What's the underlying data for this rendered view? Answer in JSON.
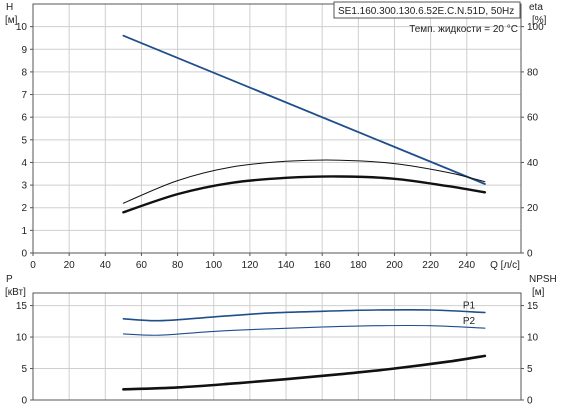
{
  "header": {
    "model": "SE1.160.300.130.6.52E.C.N.51D, 50Hz",
    "temp_note": "Темп. жидкости = 20 °C"
  },
  "chart_data": [
    {
      "type": "line",
      "id": "head-eff",
      "xlabel": "Q [л/с]",
      "xlim": [
        0,
        270
      ],
      "x_ticks": [
        0,
        20,
        40,
        60,
        80,
        100,
        120,
        140,
        160,
        180,
        200,
        220,
        240
      ],
      "ylabel_left_top": "H",
      "ylabel_left_unit": "[м]",
      "ylim_left": [
        0,
        11
      ],
      "y_ticks_left": [
        0,
        1,
        2,
        3,
        4,
        5,
        6,
        7,
        8,
        9,
        10
      ],
      "ylabel_right_top": "eta",
      "ylabel_right_unit": "[%]",
      "ylim_right": [
        0,
        110
      ],
      "y_ticks_right": [
        0,
        20,
        40,
        60,
        80,
        100
      ],
      "grid": true,
      "series": [
        {
          "axis": "left",
          "color": "#1f4e8c",
          "x": [
            50,
            250
          ],
          "values": [
            9.6,
            3.05
          ]
        },
        {
          "axis": "right",
          "color": "#111111",
          "x": [
            50,
            80,
            110,
            140,
            170,
            200,
            230,
            250
          ],
          "values": [
            22,
            32,
            38,
            40.5,
            41,
            39.5,
            35.5,
            31.5
          ]
        },
        {
          "axis": "right",
          "color": "#111111",
          "x": [
            50,
            80,
            110,
            140,
            170,
            200,
            230,
            250
          ],
          "values": [
            18,
            26,
            31,
            33.2,
            33.8,
            32.8,
            29.5,
            26.8
          ]
        }
      ]
    },
    {
      "type": "line",
      "id": "power-npsh",
      "xlim": [
        0,
        270
      ],
      "ylabel_left_top": "P",
      "ylabel_left_unit": "[кВт]",
      "ylim_left": [
        0,
        17
      ],
      "y_ticks_left": [
        0,
        5,
        10,
        15
      ],
      "ylabel_right_top": "NPSH",
      "ylabel_right_unit": "[м]",
      "ylim_right": [
        0,
        17
      ],
      "y_ticks_right": [
        0,
        5,
        10,
        15
      ],
      "grid": true,
      "series": [
        {
          "name": "P1",
          "axis": "left",
          "color": "#1f4e8c",
          "x": [
            50,
            70,
            100,
            130,
            160,
            190,
            220,
            250
          ],
          "values": [
            12.9,
            12.6,
            13.2,
            13.8,
            14.1,
            14.3,
            14.3,
            13.9
          ]
        },
        {
          "name": "P2",
          "axis": "left",
          "color": "#1f4e8c",
          "x": [
            50,
            70,
            100,
            130,
            160,
            190,
            220,
            250
          ],
          "values": [
            10.5,
            10.3,
            10.9,
            11.3,
            11.6,
            11.8,
            11.8,
            11.4
          ]
        },
        {
          "axis": "right",
          "color": "#111111",
          "x": [
            50,
            80,
            110,
            140,
            170,
            200,
            230,
            250
          ],
          "values": [
            1.7,
            2.0,
            2.6,
            3.3,
            4.1,
            5.0,
            6.1,
            7.0
          ]
        }
      ]
    }
  ]
}
